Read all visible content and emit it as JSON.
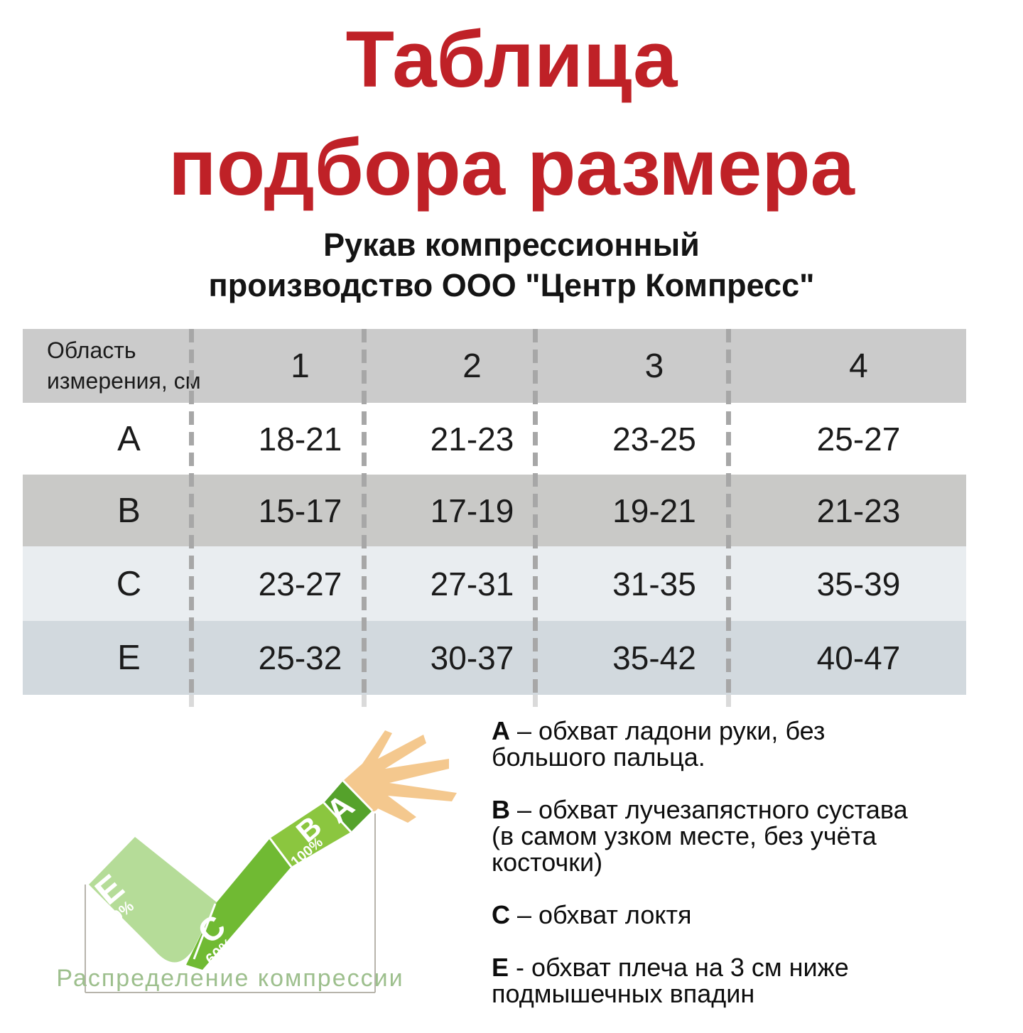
{
  "title": "Таблица\nподбора размера",
  "subtitle": "Рукав компрессионный\nпроизводство ООО \"Центр Компресс\"",
  "table": {
    "corner_label": "Область\nизмерения, см",
    "size_columns": [
      "1",
      "2",
      "3",
      "4"
    ],
    "rows": [
      {
        "label": "A",
        "values": [
          "18-21",
          "21-23",
          "23-25",
          "25-27"
        ]
      },
      {
        "label": "B",
        "values": [
          "15-17",
          "17-19",
          "19-21",
          "21-23"
        ]
      },
      {
        "label": "C",
        "values": [
          "23-27",
          "27-31",
          "31-35",
          "35-39"
        ]
      },
      {
        "label": "E",
        "values": [
          "25-32",
          "30-37",
          "35-42",
          "40-47"
        ]
      }
    ]
  },
  "legend": {
    "items": [
      {
        "letter": "A",
        "text": " – обхват ладони руки, без\nбольшого пальца."
      },
      {
        "letter": "B",
        "text": " – обхват лучезапястного сустава\n(в самом узком месте, без учёта\nкосточки)"
      },
      {
        "letter": "C",
        "text": " – обхват локтя"
      },
      {
        "letter": "E",
        "text": " - обхват плеча на 3 см ниже\nподмышечных впадин"
      }
    ]
  },
  "diagram": {
    "caption": "Распределение компрессии",
    "zones": {
      "e": {
        "label": "E",
        "percent": "40%"
      },
      "c": {
        "label": "C",
        "percent": "60%"
      },
      "b": {
        "label": "B",
        "percent": "100%"
      },
      "a": {
        "label": "A",
        "percent": ""
      }
    }
  },
  "colors": {
    "title_red": "#bf2127",
    "table_header_bg": "#cbcbcb",
    "row_a_bg": "#ffffff",
    "row_b_bg": "#c9c9c7",
    "row_c_bg": "#e9edf0",
    "row_e_bg": "#d2d9de",
    "dash_gray": "#a7a7a7",
    "dash_tail": "#dadada",
    "zone_e_green": "#b5dc98",
    "zone_c_green": "#70ba33",
    "zone_b_green": "#8bc63f",
    "zone_a_green": "#55a22b",
    "hand_skin": "#f4c88e",
    "caption_green": "#9dbf8d",
    "box_border": "#b7b4ab"
  }
}
